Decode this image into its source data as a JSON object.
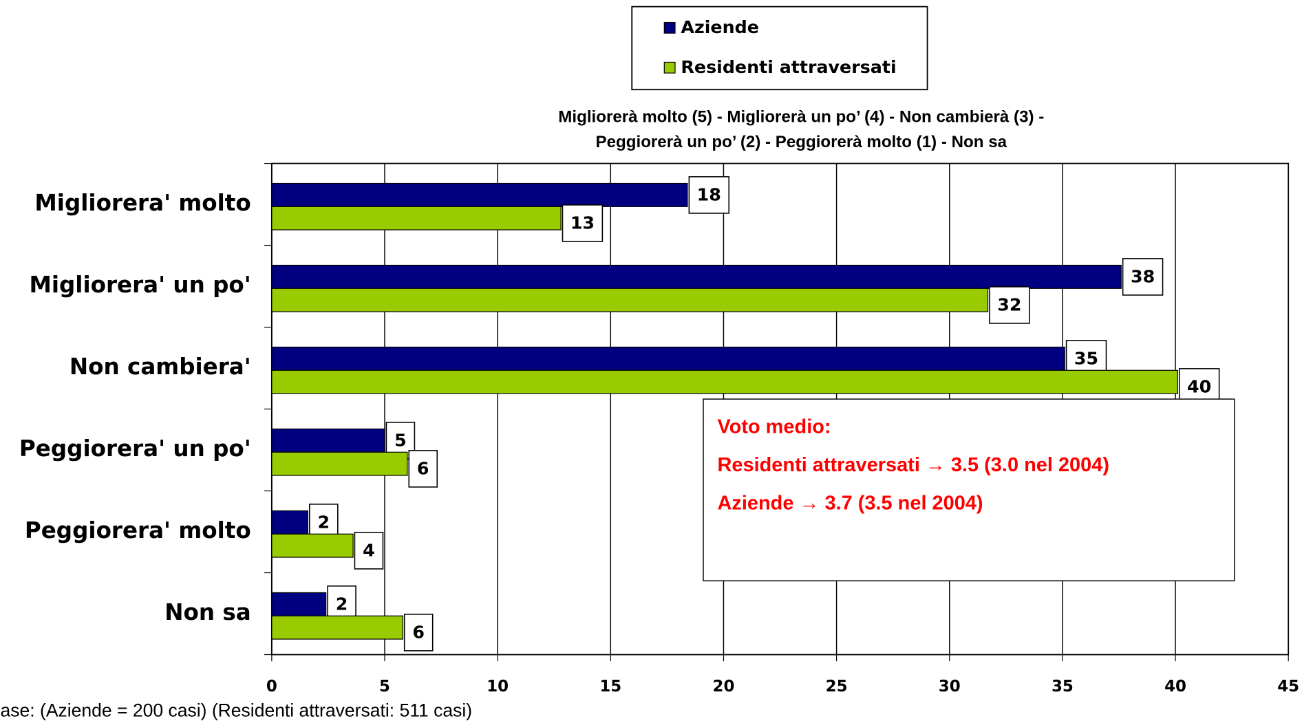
{
  "chart_data": {
    "type": "bar",
    "orientation": "horizontal",
    "subtitle": [
      "Migliorerà molto (5) - Migliorerà un po’ (4) - Non cambierà (3) -",
      "Peggiorerà un po’ (2) - Peggiorerà molto (1) - Non sa"
    ],
    "categories": [
      "Migliorera' molto",
      "Migliorera' un po'",
      "Non cambiera'",
      "Peggiorera' un po'",
      "Peggiorera' molto",
      "Non sa"
    ],
    "series": [
      {
        "name": "Aziende",
        "color": "#000080",
        "values": [
          18.4,
          37.6,
          35.1,
          5.0,
          1.6,
          2.4
        ],
        "value_labels": [
          "18",
          "38",
          "35",
          "5",
          "2",
          "2"
        ]
      },
      {
        "name": "Residenti attraversati",
        "color": "#99cc00",
        "values": [
          12.8,
          31.7,
          40.1,
          6.0,
          3.6,
          5.8
        ],
        "value_labels": [
          "13",
          "32",
          "40",
          "6",
          "4",
          "6"
        ]
      }
    ],
    "xlim": [
      0,
      45
    ],
    "xticks": [
      0,
      5,
      10,
      15,
      20,
      25,
      30,
      35,
      40,
      45
    ],
    "grid": true,
    "annotation": [
      "Voto medio:",
      "Residenti attraversati → 3.5 (3.0 nel 2004)",
      "Aziende → 3.7 (3.5 nel 2004)"
    ],
    "footnote": "ase: (Aziende = 200 casi) (Residenti attraversati: 511 casi)"
  }
}
